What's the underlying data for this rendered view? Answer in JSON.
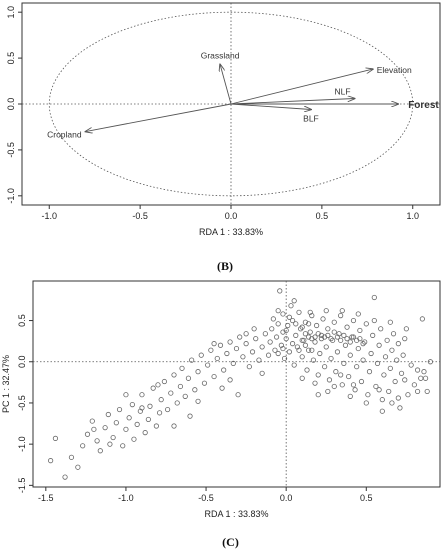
{
  "chart_data": [
    {
      "type": "scatter",
      "subtype": "rda-biplot",
      "panel_label": "(B)",
      "xlabel": "RDA 1 : 33.83%",
      "ylabel": "PC 1 : 32.47%",
      "xlim": [
        -1.15,
        1.15
      ],
      "ylim": [
        -1.1,
        1.1
      ],
      "xticks": [
        -1.0,
        -0.5,
        0.0,
        0.5,
        1.0
      ],
      "xtick_labels": [
        "-1.0",
        "-0.5",
        "0.0",
        "0.5",
        "1.0"
      ],
      "yticks": [
        -1.0,
        -0.5,
        0.0,
        0.5,
        1.0
      ],
      "ytick_labels": [
        "-1.0",
        "-0.5",
        "0.0",
        "0.5",
        "1.0"
      ],
      "reference_lines": "dotted zero lines and unit circle",
      "vectors": [
        {
          "label": "Grassland",
          "x": -0.06,
          "y": 0.43,
          "bold": false
        },
        {
          "label": "Elevation",
          "x": 0.78,
          "y": 0.38,
          "bold": false
        },
        {
          "label": "NLF",
          "x": 0.68,
          "y": 0.06,
          "bold": false
        },
        {
          "label": "Forest",
          "x": 0.92,
          "y": 0.0,
          "bold": true
        },
        {
          "label": "BLF",
          "x": 0.44,
          "y": -0.06,
          "bold": false
        },
        {
          "label": "Cropland",
          "x": -0.8,
          "y": -0.3,
          "bold": false
        }
      ]
    },
    {
      "type": "scatter",
      "panel_label": "(C)",
      "xlabel": "RDA 1 : 33.83%",
      "ylabel": "PC 1 : 32.47%",
      "xlim": [
        -1.58,
        0.96
      ],
      "ylim": [
        -1.52,
        0.98
      ],
      "xticks": [
        -1.5,
        -1.0,
        -0.5,
        0.0,
        0.5
      ],
      "xtick_labels": [
        "-1.5",
        "-1.0",
        "-0.5",
        "0.0",
        "0.5"
      ],
      "yticks": [
        -1.5,
        -1.0,
        -0.5,
        0.0,
        0.5
      ],
      "ytick_labels": [
        "-1.5",
        "-1.0",
        "-0.5",
        "0.0",
        "0.5"
      ],
      "reference_lines": "dotted zero lines",
      "points": [
        [
          -1.47,
          -1.2
        ],
        [
          -1.44,
          -0.93
        ],
        [
          -1.38,
          -1.4
        ],
        [
          -1.34,
          -1.16
        ],
        [
          -1.3,
          -1.28
        ],
        [
          -1.27,
          -1.02
        ],
        [
          -1.24,
          -0.88
        ],
        [
          -1.21,
          -0.72
        ],
        [
          -1.18,
          -0.96
        ],
        [
          -1.16,
          -1.08
        ],
        [
          -1.13,
          -0.8
        ],
        [
          -1.11,
          -0.64
        ],
        [
          -1.08,
          -0.92
        ],
        [
          -1.06,
          -0.74
        ],
        [
          -1.04,
          -0.58
        ],
        [
          -1.02,
          -1.02
        ],
        [
          -1.0,
          -0.82
        ],
        [
          -0.98,
          -0.68
        ],
        [
          -0.96,
          -0.52
        ],
        [
          -0.95,
          -0.94
        ],
        [
          -0.93,
          -0.76
        ],
        [
          -0.91,
          -0.6
        ],
        [
          -0.9,
          -0.4
        ],
        [
          -0.88,
          -0.86
        ],
        [
          -0.86,
          -0.7
        ],
        [
          -0.85,
          -0.54
        ],
        [
          -0.83,
          -0.32
        ],
        [
          -0.81,
          -0.78
        ],
        [
          -0.79,
          -0.62
        ],
        [
          -0.78,
          -0.46
        ],
        [
          -0.76,
          -0.24
        ],
        [
          -0.74,
          -0.58
        ],
        [
          -0.72,
          -0.38
        ],
        [
          -0.7,
          -0.16
        ],
        [
          -0.68,
          -0.5
        ],
        [
          -0.66,
          -0.3
        ],
        [
          -0.65,
          -0.08
        ],
        [
          -0.63,
          -0.42
        ],
        [
          -0.61,
          -0.2
        ],
        [
          -0.59,
          0.02
        ],
        [
          -0.57,
          -0.34
        ],
        [
          -0.55,
          -0.12
        ],
        [
          -0.53,
          0.08
        ],
        [
          -0.51,
          -0.26
        ],
        [
          -0.49,
          -0.04
        ],
        [
          -0.47,
          0.14
        ],
        [
          -0.45,
          -0.18
        ],
        [
          -0.43,
          0.04
        ],
        [
          -0.41,
          0.2
        ],
        [
          -0.39,
          -0.1
        ],
        [
          -0.37,
          0.1
        ],
        [
          -0.35,
          0.24
        ],
        [
          -0.33,
          -0.02
        ],
        [
          -0.31,
          0.16
        ],
        [
          -0.29,
          0.3
        ],
        [
          -0.27,
          0.06
        ],
        [
          -0.25,
          0.22
        ],
        [
          -0.23,
          -0.06
        ],
        [
          -0.21,
          0.12
        ],
        [
          -0.19,
          0.28
        ],
        [
          -0.17,
          0.02
        ],
        [
          -0.15,
          0.18
        ],
        [
          -0.13,
          0.34
        ],
        [
          -0.11,
          0.08
        ],
        [
          -0.1,
          0.24
        ],
        [
          -0.09,
          0.4
        ],
        [
          -0.08,
          0.52
        ],
        [
          -0.07,
          0.14
        ],
        [
          -0.06,
          0.3
        ],
        [
          -0.05,
          0.46
        ],
        [
          -0.05,
          0.62
        ],
        [
          -0.04,
          0.86
        ],
        [
          -0.03,
          0.2
        ],
        [
          -0.02,
          0.36
        ],
        [
          -0.02,
          0.58
        ],
        [
          -0.01,
          0.04
        ],
        [
          0.0,
          0.28
        ],
        [
          0.01,
          0.44
        ],
        [
          0.02,
          0.12
        ],
        [
          0.03,
          0.68
        ],
        [
          0.04,
          0.5
        ],
        [
          0.05,
          -0.04
        ],
        [
          0.06,
          0.32
        ],
        [
          0.07,
          0.18
        ],
        [
          0.08,
          0.6
        ],
        [
          0.09,
          0.4
        ],
        [
          0.1,
          0.06
        ],
        [
          0.11,
          0.26
        ],
        [
          0.12,
          0.48
        ],
        [
          0.13,
          -0.1
        ],
        [
          0.14,
          0.14
        ],
        [
          0.15,
          0.36
        ],
        [
          0.16,
          0.56
        ],
        [
          0.17,
          0.02
        ],
        [
          0.18,
          0.24
        ],
        [
          0.19,
          0.44
        ],
        [
          0.2,
          -0.16
        ],
        [
          0.21,
          0.1
        ],
        [
          0.22,
          0.32
        ],
        [
          0.23,
          0.52
        ],
        [
          0.24,
          -0.06
        ],
        [
          0.25,
          0.18
        ],
        [
          0.26,
          0.4
        ],
        [
          0.27,
          -0.22
        ],
        [
          0.28,
          0.04
        ],
        [
          0.29,
          0.26
        ],
        [
          0.3,
          0.48
        ],
        [
          0.31,
          -0.12
        ],
        [
          0.32,
          0.12
        ],
        [
          0.33,
          0.34
        ],
        [
          0.34,
          0.56
        ],
        [
          0.35,
          -0.28
        ],
        [
          0.36,
          -0.02
        ],
        [
          0.37,
          0.2
        ],
        [
          0.38,
          0.42
        ],
        [
          0.39,
          -0.18
        ],
        [
          0.4,
          0.08
        ],
        [
          0.41,
          0.3
        ],
        [
          0.42,
          0.5
        ],
        [
          0.43,
          -0.34
        ],
        [
          0.44,
          -0.06
        ],
        [
          0.45,
          0.16
        ],
        [
          0.46,
          0.38
        ],
        [
          0.47,
          -0.24
        ],
        [
          0.48,
          0.02
        ],
        [
          0.49,
          0.24
        ],
        [
          0.5,
          0.46
        ],
        [
          0.51,
          -0.4
        ],
        [
          0.52,
          -0.12
        ],
        [
          0.53,
          0.1
        ],
        [
          0.54,
          0.32
        ],
        [
          0.55,
          0.78
        ],
        [
          0.56,
          -0.3
        ],
        [
          0.57,
          -0.02
        ],
        [
          0.58,
          0.2
        ],
        [
          0.59,
          0.4
        ],
        [
          0.6,
          -0.46
        ],
        [
          0.61,
          -0.16
        ],
        [
          0.62,
          0.06
        ],
        [
          0.63,
          0.26
        ],
        [
          0.64,
          -0.36
        ],
        [
          0.65,
          -0.08
        ],
        [
          0.66,
          0.14
        ],
        [
          0.67,
          0.34
        ],
        [
          0.68,
          -0.24
        ],
        [
          0.69,
          0.02
        ],
        [
          0.7,
          0.22
        ],
        [
          0.71,
          -0.56
        ],
        [
          0.72,
          -0.14
        ],
        [
          0.73,
          0.08
        ],
        [
          0.74,
          0.28
        ],
        [
          0.76,
          -0.4
        ],
        [
          0.78,
          -0.04
        ],
        [
          0.8,
          -0.28
        ],
        [
          0.82,
          -0.1
        ],
        [
          0.84,
          -0.2
        ],
        [
          0.85,
          0.52
        ],
        [
          0.87,
          -0.2
        ],
        [
          0.88,
          -0.36
        ],
        [
          0.9,
          0.0
        ],
        [
          -0.55,
          -0.48
        ],
        [
          -0.45,
          0.22
        ],
        [
          -0.35,
          -0.22
        ],
        [
          -0.25,
          0.34
        ],
        [
          -0.15,
          -0.14
        ],
        [
          -0.05,
          0.1
        ],
        [
          0.05,
          0.74
        ],
        [
          0.15,
          0.6
        ],
        [
          0.25,
          0.62
        ],
        [
          0.35,
          0.62
        ],
        [
          0.45,
          0.58
        ],
        [
          0.55,
          0.5
        ],
        [
          0.65,
          0.48
        ],
        [
          0.75,
          0.4
        ],
        [
          0.2,
          -0.4
        ],
        [
          0.3,
          -0.3
        ],
        [
          0.4,
          -0.42
        ],
        [
          0.5,
          -0.5
        ],
        [
          0.6,
          -0.6
        ],
        [
          0.7,
          -0.44
        ],
        [
          -0.2,
          0.4
        ],
        [
          -0.3,
          -0.4
        ],
        [
          -0.4,
          -0.32
        ],
        [
          -0.6,
          -0.66
        ],
        [
          -0.7,
          -0.78
        ],
        [
          -0.8,
          -0.28
        ],
        [
          -0.9,
          -0.56
        ],
        [
          -1.0,
          -0.4
        ],
        [
          -1.1,
          -1.0
        ],
        [
          -1.2,
          -0.82
        ],
        [
          0.1,
          0.26
        ],
        [
          0.12,
          0.34
        ],
        [
          0.14,
          0.3
        ],
        [
          0.16,
          0.28
        ],
        [
          0.18,
          0.3
        ],
        [
          0.2,
          0.34
        ],
        [
          0.22,
          0.28
        ],
        [
          0.24,
          0.3
        ],
        [
          0.26,
          0.32
        ],
        [
          0.28,
          0.28
        ],
        [
          0.3,
          0.36
        ],
        [
          0.32,
          0.3
        ],
        [
          0.34,
          0.26
        ],
        [
          0.36,
          0.32
        ],
        [
          0.38,
          0.28
        ],
        [
          0.4,
          0.24
        ],
        [
          0.42,
          0.3
        ],
        [
          0.44,
          0.26
        ],
        [
          0.46,
          0.28
        ],
        [
          0.48,
          0.22
        ],
        [
          0.1,
          -0.2
        ],
        [
          0.18,
          -0.26
        ],
        [
          0.26,
          -0.36
        ],
        [
          0.34,
          -0.16
        ],
        [
          0.42,
          -0.28
        ],
        [
          0.58,
          -0.34
        ],
        [
          0.66,
          -0.5
        ],
        [
          0.74,
          -0.22
        ],
        [
          0.82,
          -0.36
        ],
        [
          0.86,
          -0.12
        ],
        [
          -0.02,
          0.16
        ],
        [
          0.0,
          0.38
        ],
        [
          0.02,
          0.54
        ],
        [
          0.04,
          0.22
        ],
        [
          0.06,
          0.46
        ],
        [
          0.08,
          0.14
        ],
        [
          0.1,
          0.42
        ],
        [
          0.12,
          0.2
        ],
        [
          0.14,
          0.46
        ],
        [
          0.16,
          0.14
        ]
      ]
    }
  ]
}
